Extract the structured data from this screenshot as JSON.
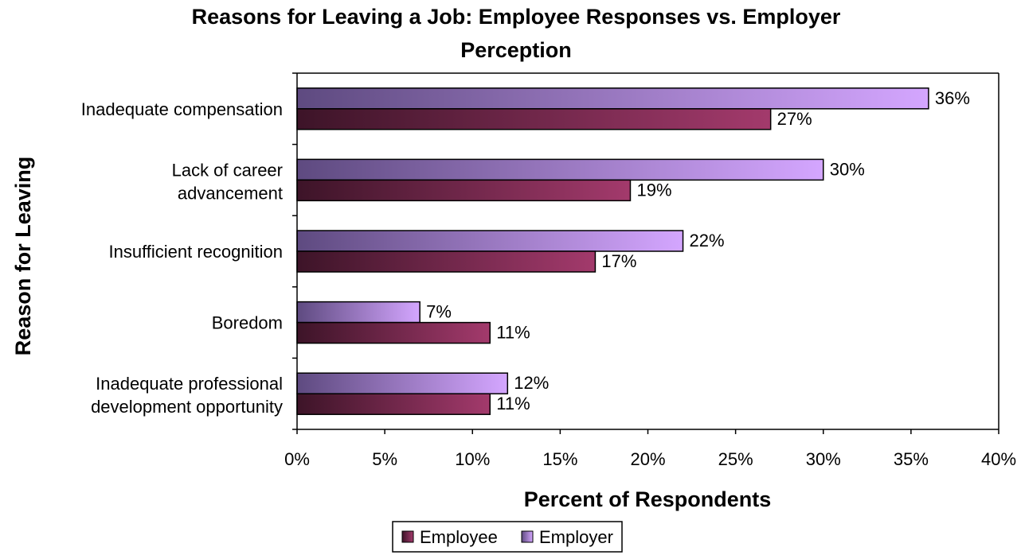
{
  "chart_data": {
    "type": "bar",
    "orientation": "horizontal",
    "title": "Reasons for Leaving a Job:  Employee Responses vs. Employer Perception",
    "xlabel": "Percent of Respondents",
    "ylabel": "Reason for Leaving",
    "xlim": [
      0,
      40
    ],
    "x_ticks": [
      "0%",
      "5%",
      "10%",
      "15%",
      "20%",
      "25%",
      "30%",
      "35%",
      "40%"
    ],
    "grid": false,
    "legend_position": "bottom",
    "categories": [
      "Inadequate compensation",
      "Lack of career advancement",
      "Insufficient recognition",
      "Boredom",
      "Inadequate professional development opportunity"
    ],
    "series": [
      {
        "name": "Employee",
        "values": [
          27,
          19,
          17,
          11,
          11
        ],
        "labels": [
          "27%",
          "19%",
          "17%",
          "11%",
          "11%"
        ],
        "color": "#8B2F5E"
      },
      {
        "name": "Employer",
        "values": [
          36,
          30,
          22,
          7,
          12
        ],
        "labels": [
          "36%",
          "30%",
          "22%",
          "7%",
          "12%"
        ],
        "color": "#CC99FF"
      }
    ]
  }
}
